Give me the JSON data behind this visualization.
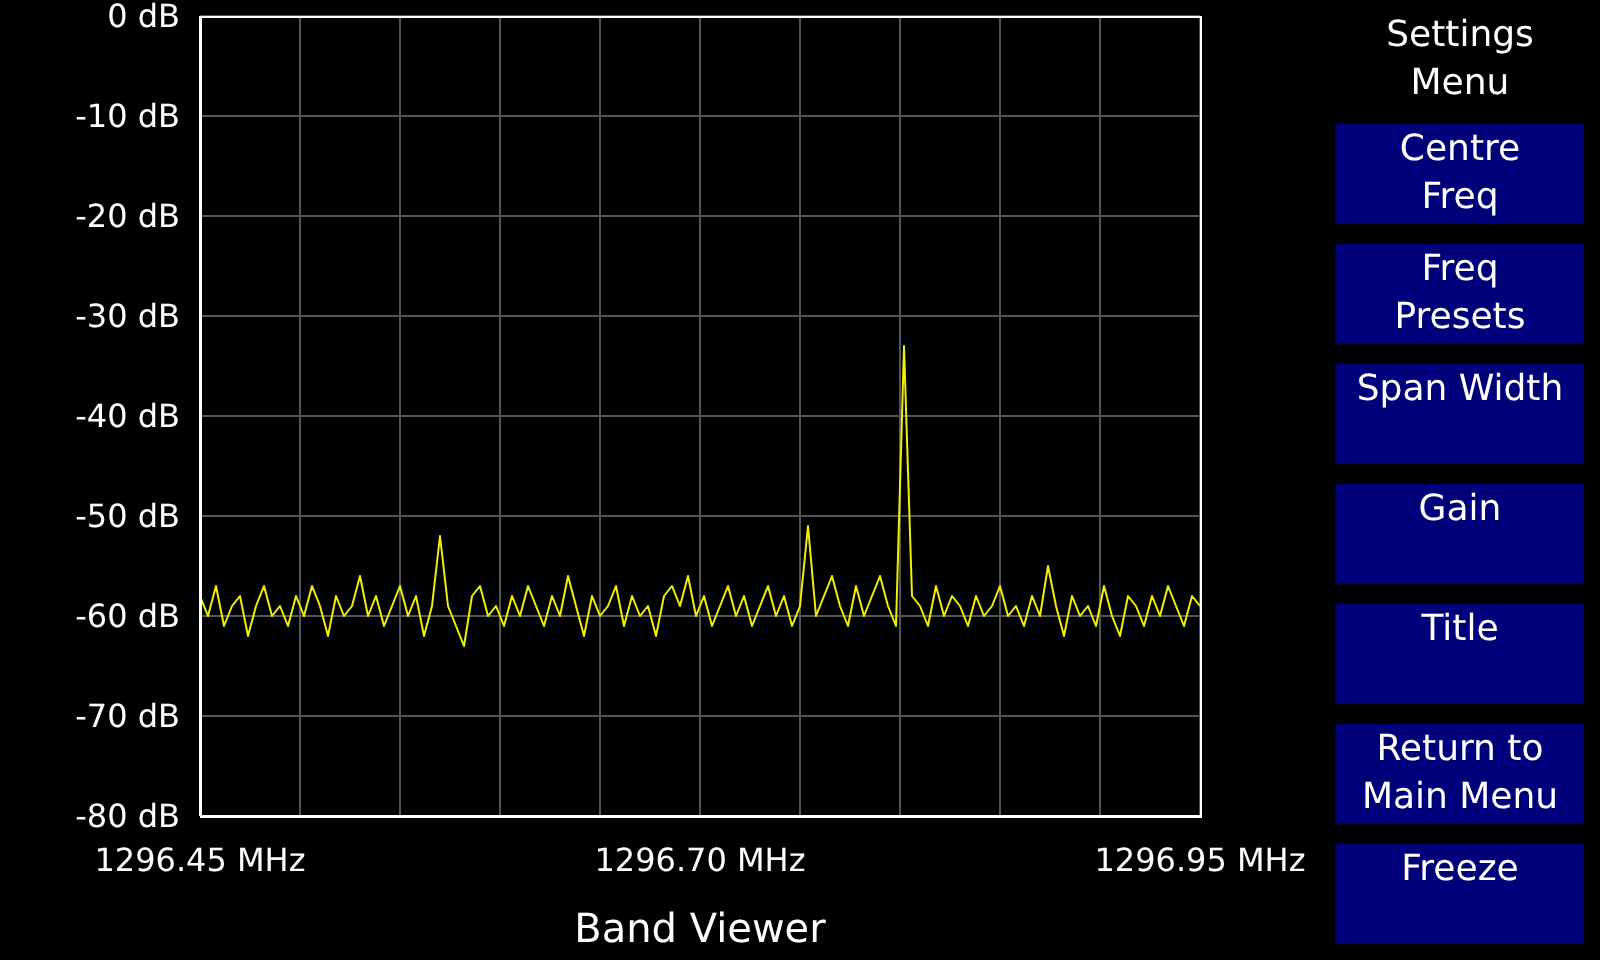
{
  "chart_data": {
    "type": "line",
    "title": "Band Viewer",
    "annotations": [
      "Settings Menu",
      "Centre Freq",
      "Freq Presets",
      "Span Width",
      "Gain",
      "Title",
      "Return to Main Menu",
      "Freeze"
    ],
    "x": [
      1296.45,
      1296.454,
      1296.458,
      1296.462,
      1296.466,
      1296.47,
      1296.474,
      1296.478,
      1296.482,
      1296.486,
      1296.49,
      1296.494,
      1296.498,
      1296.502,
      1296.506,
      1296.51,
      1296.514,
      1296.518,
      1296.522,
      1296.526,
      1296.53,
      1296.534,
      1296.538,
      1296.542,
      1296.546,
      1296.55,
      1296.554,
      1296.558,
      1296.562,
      1296.566,
      1296.57,
      1296.574,
      1296.578,
      1296.582,
      1296.586,
      1296.59,
      1296.594,
      1296.598,
      1296.602,
      1296.606,
      1296.61,
      1296.614,
      1296.618,
      1296.622,
      1296.626,
      1296.63,
      1296.634,
      1296.638,
      1296.642,
      1296.646,
      1296.65,
      1296.654,
      1296.658,
      1296.662,
      1296.666,
      1296.67,
      1296.674,
      1296.678,
      1296.682,
      1296.686,
      1296.69,
      1296.694,
      1296.698,
      1296.702,
      1296.706,
      1296.71,
      1296.714,
      1296.718,
      1296.722,
      1296.726,
      1296.73,
      1296.734,
      1296.738,
      1296.742,
      1296.746,
      1296.75,
      1296.754,
      1296.758,
      1296.762,
      1296.766,
      1296.77,
      1296.774,
      1296.778,
      1296.782,
      1296.786,
      1296.79,
      1296.794,
      1296.798,
      1296.802,
      1296.806,
      1296.81,
      1296.814,
      1296.818,
      1296.822,
      1296.826,
      1296.83,
      1296.834,
      1296.838,
      1296.842,
      1296.846,
      1296.85,
      1296.854,
      1296.858,
      1296.862,
      1296.866,
      1296.87,
      1296.874,
      1296.878,
      1296.882,
      1296.886,
      1296.89,
      1296.894,
      1296.898,
      1296.902,
      1296.906,
      1296.91,
      1296.914,
      1296.918,
      1296.922,
      1296.926,
      1296.93,
      1296.934,
      1296.938,
      1296.942,
      1296.946,
      1296.95
    ],
    "series": [
      {
        "color": "#f0f000",
        "values": [
          -58,
          -60,
          -57,
          -61,
          -59,
          -58,
          -62,
          -59,
          -57,
          -60,
          -59,
          -61,
          -58,
          -60,
          -57,
          -59,
          -62,
          -58,
          -60,
          -59,
          -56,
          -60,
          -58,
          -61,
          -59,
          -57,
          -60,
          -58,
          -62,
          -59,
          -52,
          -59,
          -61,
          -63,
          -58,
          -57,
          -60,
          -59,
          -61,
          -58,
          -60,
          -57,
          -59,
          -61,
          -58,
          -60,
          -56,
          -59,
          -62,
          -58,
          -60,
          -59,
          -57,
          -61,
          -58,
          -60,
          -59,
          -62,
          -58,
          -57,
          -59,
          -56,
          -60,
          -58,
          -61,
          -59,
          -57,
          -60,
          -58,
          -61,
          -59,
          -57,
          -60,
          -58,
          -61,
          -59,
          -51,
          -60,
          -58,
          -56,
          -59,
          -61,
          -57,
          -60,
          -58,
          -56,
          -59,
          -61,
          -33,
          -58,
          -59,
          -61,
          -57,
          -60,
          -58,
          -59,
          -61,
          -58,
          -60,
          -59,
          -57,
          -60,
          -59,
          -61,
          -58,
          -60,
          -55,
          -59,
          -62,
          -58,
          -60,
          -59,
          -61,
          -57,
          -60,
          -62,
          -58,
          -59,
          -61,
          -58,
          -60,
          -57,
          -59,
          -61,
          -58,
          -59
        ]
      }
    ],
    "xlim": [
      1296.45,
      1296.95
    ],
    "xticks": [
      {
        "value": 1296.45,
        "label": "1296.45 MHz"
      },
      {
        "value": 1296.5,
        "label": null
      },
      {
        "value": 1296.55,
        "label": null
      },
      {
        "value": 1296.6,
        "label": null
      },
      {
        "value": 1296.65,
        "label": null
      },
      {
        "value": 1296.7,
        "label": "1296.70 MHz"
      },
      {
        "value": 1296.75,
        "label": null
      },
      {
        "value": 1296.8,
        "label": null
      },
      {
        "value": 1296.85,
        "label": null
      },
      {
        "value": 1296.9,
        "label": null
      },
      {
        "value": 1296.95,
        "label": "1296.95 MHz"
      }
    ],
    "ylim": [
      -80,
      0
    ],
    "yticks": [
      {
        "value": -80,
        "label": "-80 dB"
      },
      {
        "value": -70,
        "label": "-70 dB"
      },
      {
        "value": -60,
        "label": "-60 dB"
      },
      {
        "value": -50,
        "label": "-50 dB"
      },
      {
        "value": -40,
        "label": "-40 dB"
      },
      {
        "value": -30,
        "label": "-30 dB"
      },
      {
        "value": -20,
        "label": "-20 dB"
      },
      {
        "value": -10,
        "label": "-10 dB"
      },
      {
        "value": 0,
        "label": "0 dB"
      }
    ],
    "grid": true,
    "marker": "none",
    "line_style": "solid"
  }
}
